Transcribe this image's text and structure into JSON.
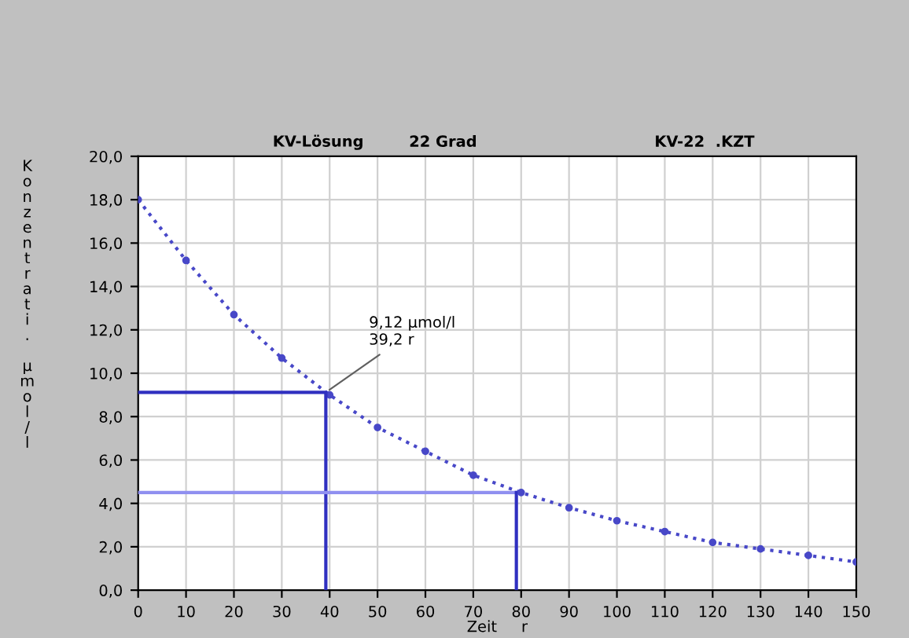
{
  "chart_data": {
    "type": "line",
    "title": "KV-Lösung",
    "subtitle": "22 Grad",
    "xlabel": "Zeit     r",
    "ylabel": "Konzentrati. µmol/l",
    "annotations": [
      {
        "text": "9,12 µmol/l\n39,2 r",
        "x": 39.2,
        "y": 9.12
      },
      "KV-22  .KZT"
    ],
    "series": [
      {
        "color": "#4848c8",
        "marker": "circle",
        "line_style": "dotted",
        "x": [
          0,
          10,
          20,
          30,
          40,
          50,
          60,
          70,
          80,
          90,
          100,
          110,
          120,
          130,
          140,
          150
        ],
        "values": [
          18.0,
          15.2,
          12.7,
          10.7,
          9.0,
          7.5,
          6.4,
          5.3,
          4.5,
          3.8,
          3.2,
          2.7,
          2.2,
          1.9,
          1.6,
          1.3
        ]
      },
      {
        "color": "#3030c0",
        "line_style": "solid",
        "x": [
          0,
          39.2,
          39.2
        ],
        "values": [
          9.12,
          9.12,
          0
        ]
      },
      {
        "color": "#9090f0",
        "line_style": "solid",
        "x": [
          0,
          79
        ],
        "values": [
          4.5,
          4.5
        ]
      },
      {
        "color": "#3030c0",
        "line_style": "solid",
        "x": [
          79,
          79
        ],
        "values": [
          4.5,
          0
        ]
      }
    ],
    "xlim": [
      0,
      150
    ],
    "xticks": [
      0,
      10,
      20,
      30,
      40,
      50,
      60,
      70,
      80,
      90,
      100,
      110,
      120,
      130,
      140,
      150
    ],
    "ylim": [
      0,
      20
    ],
    "yticks": [
      {
        "value": 0,
        "label": "0,0"
      },
      {
        "value": 2,
        "label": "2,0"
      },
      {
        "value": 4,
        "label": "4,0"
      },
      {
        "value": 6,
        "label": "6,0"
      },
      {
        "value": 8,
        "label": "8,0"
      },
      {
        "value": 10,
        "label": "10,0"
      },
      {
        "value": 12,
        "label": "12,0"
      },
      {
        "value": 14,
        "label": "14,0"
      },
      {
        "value": 16,
        "label": "16,0"
      },
      {
        "value": 18,
        "label": "18,0"
      },
      {
        "value": 20,
        "label": "20,0"
      }
    ],
    "grid": true,
    "legend": false
  }
}
